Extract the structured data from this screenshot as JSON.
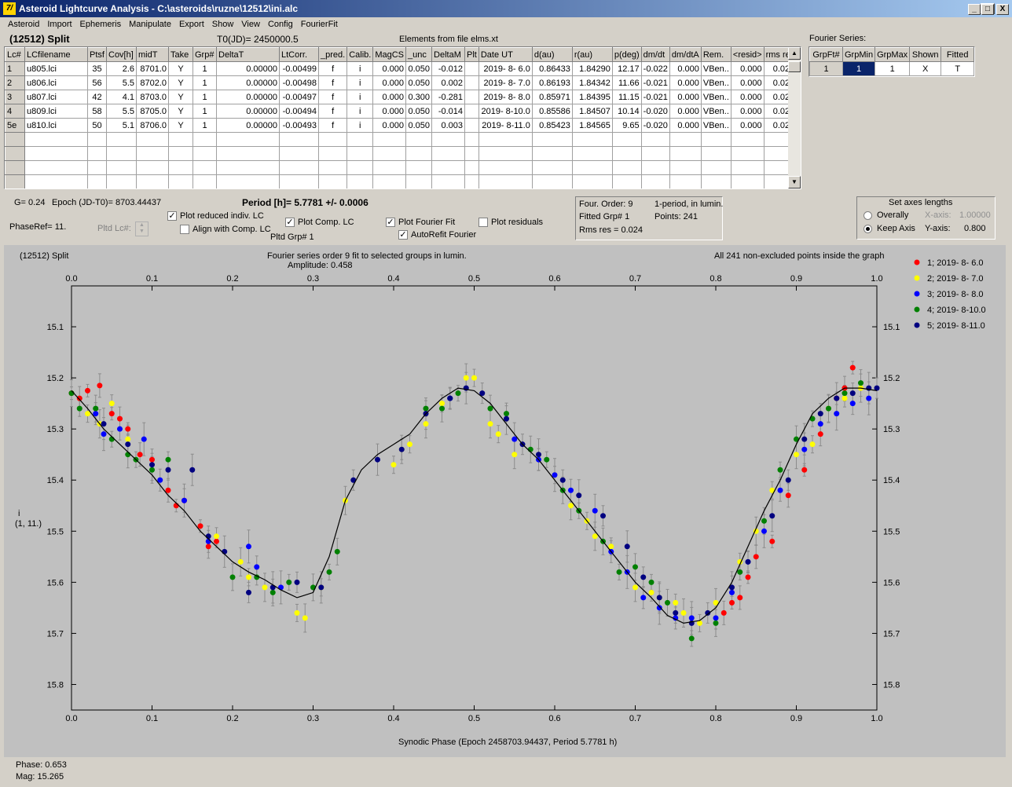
{
  "window": {
    "title": "Asteroid Lightcurve Analysis - C:\\asteroids\\ruzne\\12512\\ini.alc",
    "app_icon_text": "7/",
    "btn_minimize": "_",
    "btn_maximize": "□",
    "btn_close": "X"
  },
  "menu": [
    "Asteroid",
    "Import",
    "Ephemeris",
    "Manipulate",
    "Export",
    "Show",
    "View",
    "Config",
    "FourierFit"
  ],
  "header": {
    "object": "(12512) Split",
    "t0": "T0(JD)= 2450000.5",
    "elements": "Elements from file elms.xt"
  },
  "lc_table": {
    "columns": [
      "Lc#",
      "LCfilename",
      "Ptsf",
      "Cov[h]",
      "midT",
      "Take",
      "Grp#",
      "DeltaT",
      "LtCorr.",
      "_pred.",
      "Calib.",
      "MagCS",
      "_unc",
      "DeltaM",
      "Plt",
      "Date UT",
      "d(au)",
      "r(au)",
      "p(deg)",
      "dm/dt",
      "dm/dtA",
      "Rem.",
      "<resid>",
      "rms res"
    ],
    "rows": [
      [
        "1",
        "u805.lci",
        "35",
        "2.6",
        "8701.0",
        "Y",
        "1",
        "0.00000",
        "-0.00499",
        "f",
        "i",
        "0.000",
        "0.050",
        "-0.012",
        "",
        "2019- 8- 6.0",
        "0.86433",
        "1.84290",
        "12.17",
        "-0.022",
        "0.000",
        "VBen..",
        "0.000",
        "0.026"
      ],
      [
        "2",
        "u806.lci",
        "56",
        "5.5",
        "8702.0",
        "Y",
        "1",
        "0.00000",
        "-0.00498",
        "f",
        "i",
        "0.000",
        "0.050",
        "0.002",
        "",
        "2019- 8- 7.0",
        "0.86193",
        "1.84342",
        "11.66",
        "-0.021",
        "0.000",
        "VBen..",
        "0.000",
        "0.023"
      ],
      [
        "3",
        "u807.lci",
        "42",
        "4.1",
        "8703.0",
        "Y",
        "1",
        "0.00000",
        "-0.00497",
        "f",
        "i",
        "0.000",
        "0.300",
        "-0.281",
        "",
        "2019- 8- 8.0",
        "0.85971",
        "1.84395",
        "11.15",
        "-0.021",
        "0.000",
        "VBen..",
        "0.000",
        "0.021"
      ],
      [
        "4",
        "u809.lci",
        "58",
        "5.5",
        "8705.0",
        "Y",
        "1",
        "0.00000",
        "-0.00494",
        "f",
        "i",
        "0.000",
        "0.050",
        "-0.014",
        "",
        "2019- 8-10.0",
        "0.85586",
        "1.84507",
        "10.14",
        "-0.020",
        "0.000",
        "VBen..",
        "0.000",
        "0.022"
      ],
      [
        "5e",
        "u810.lci",
        "50",
        "5.1",
        "8706.0",
        "Y",
        "1",
        "0.00000",
        "-0.00493",
        "f",
        "i",
        "0.000",
        "0.050",
        "0.003",
        "",
        "2019- 8-11.0",
        "0.85423",
        "1.84565",
        "9.65",
        "-0.020",
        "0.000",
        "VBen..",
        "0.000",
        "0.023"
      ]
    ],
    "empty_rows": 4
  },
  "fourier_series": {
    "title": "Fourier Series:",
    "columns": [
      "GrpFt#",
      "GrpMin",
      "GrpMax",
      "Shown",
      "Fitted"
    ],
    "rows": [
      [
        "1",
        "1",
        "1",
        "X",
        "T"
      ]
    ]
  },
  "info": {
    "g": "G= 0.24",
    "epoch": "Epoch (JD-T0)= 8703.44437",
    "period": "Period [h]= 5.7781 +/- 0.0006",
    "phaseref": "PhaseRef= 11.",
    "pltd_lc": "Pltd Lc#:",
    "pltd_grp": "Pltd Grp#  1"
  },
  "checkboxes": {
    "reduced": {
      "label": "Plot reduced indiv. LC",
      "checked": true
    },
    "align": {
      "label": "Align with Comp. LC",
      "checked": false
    },
    "comp": {
      "label": "Plot Comp. LC",
      "checked": true
    },
    "fourier": {
      "label": "Plot Fourier Fit",
      "checked": true
    },
    "autorefit": {
      "label": "AutoRefit Fourier",
      "checked": true
    },
    "residuals": {
      "label": "Plot residuals",
      "checked": false
    }
  },
  "fit_panel": {
    "order": "Four. Order:  9",
    "period_note": "1-period, in lumin.",
    "fitted": "Fitted Grp# 1",
    "points": "Points: 241",
    "rms": "Rms res      = 0.024"
  },
  "axes_panel": {
    "title": "Set axes lengths",
    "overally": "Overally",
    "keep": "Keep Axis",
    "xaxis_label": "X-axis:",
    "xaxis_val": "1.00000",
    "yaxis_label": "Y-axis:",
    "yaxis_val": "0.800"
  },
  "plot": {
    "title_left": "(12512) Split",
    "title_center": "Fourier series order 9 fit to selected groups in lumin.",
    "amplitude": "Amplitude: 0.458",
    "title_right": "All 241 non-excluded points inside the graph",
    "ylabel1": "i",
    "ylabel2": "(1, 11.)",
    "xlabel": "Synodic Phase (Epoch 2458703.94437, Period 5.7781 h)"
  },
  "status": {
    "phase": "Phase:  0.653",
    "mag": "Mag:    15.265"
  },
  "chart_data": {
    "type": "scatter",
    "title": "Fourier series order 9 fit to selected groups in lumin.",
    "xlabel": "Synodic Phase (Epoch 2458703.94437, Period 5.7781 h)",
    "ylabel": "i",
    "xlim": [
      0,
      1
    ],
    "ylim": [
      15.85,
      15.02
    ],
    "y_inverted": true,
    "xticks": [
      "0.0",
      "0.1",
      "0.2",
      "0.3",
      "0.4",
      "0.5",
      "0.6",
      "0.7",
      "0.8",
      "0.9",
      "1.0"
    ],
    "yticks": [
      "15.1",
      "15.2",
      "15.3",
      "15.4",
      "15.5",
      "15.6",
      "15.7",
      "15.8"
    ],
    "grid": false,
    "legend_position": "top-right",
    "fit_curve": {
      "x": [
        0.0,
        0.02,
        0.04,
        0.06,
        0.08,
        0.1,
        0.12,
        0.14,
        0.16,
        0.18,
        0.2,
        0.22,
        0.24,
        0.26,
        0.28,
        0.3,
        0.32,
        0.34,
        0.36,
        0.38,
        0.4,
        0.42,
        0.44,
        0.46,
        0.48,
        0.5,
        0.52,
        0.54,
        0.56,
        0.58,
        0.6,
        0.62,
        0.64,
        0.66,
        0.68,
        0.7,
        0.72,
        0.74,
        0.76,
        0.78,
        0.8,
        0.82,
        0.84,
        0.86,
        0.88,
        0.9,
        0.92,
        0.94,
        0.96,
        0.98,
        1.0
      ],
      "y": [
        15.225,
        15.26,
        15.3,
        15.33,
        15.36,
        15.39,
        15.43,
        15.46,
        15.5,
        15.53,
        15.56,
        15.58,
        15.595,
        15.615,
        15.63,
        15.62,
        15.55,
        15.44,
        15.38,
        15.35,
        15.33,
        15.31,
        15.27,
        15.24,
        15.22,
        15.225,
        15.25,
        15.29,
        15.33,
        15.36,
        15.4,
        15.44,
        15.48,
        15.52,
        15.56,
        15.6,
        15.63,
        15.665,
        15.68,
        15.675,
        15.65,
        15.6,
        15.53,
        15.46,
        15.4,
        15.33,
        15.27,
        15.24,
        15.22,
        15.22,
        15.225
      ]
    },
    "series": [
      {
        "name": "1; 2019- 8- 6.0",
        "color": "#ff0000",
        "x": [
          0.0,
          0.01,
          0.02,
          0.035,
          0.05,
          0.06,
          0.07,
          0.085,
          0.1,
          0.12,
          0.13,
          0.14,
          0.16,
          0.17,
          0.18,
          0.81,
          0.82,
          0.83,
          0.84,
          0.85,
          0.87,
          0.89,
          0.91,
          0.93,
          0.95,
          0.96,
          0.97
        ],
        "y": [
          15.23,
          15.24,
          15.225,
          15.215,
          15.27,
          15.28,
          15.3,
          15.35,
          15.36,
          15.42,
          15.45,
          15.44,
          15.49,
          15.53,
          15.52,
          15.66,
          15.64,
          15.63,
          15.59,
          15.55,
          15.52,
          15.43,
          15.38,
          15.31,
          15.24,
          15.22,
          15.18
        ]
      },
      {
        "name": "2; 2019- 8- 7.0",
        "color": "#ffff00",
        "x": [
          0.02,
          0.035,
          0.05,
          0.07,
          0.18,
          0.21,
          0.22,
          0.24,
          0.28,
          0.29,
          0.31,
          0.34,
          0.4,
          0.41,
          0.42,
          0.44,
          0.46,
          0.49,
          0.5,
          0.52,
          0.53,
          0.55,
          0.6,
          0.62,
          0.64,
          0.65,
          0.67,
          0.7,
          0.72,
          0.73,
          0.75,
          0.76,
          0.78,
          0.8,
          0.83,
          0.85,
          0.87,
          0.9,
          0.92,
          0.94,
          0.96,
          0.98
        ],
        "y": [
          15.27,
          15.29,
          15.25,
          15.32,
          15.51,
          15.56,
          15.59,
          15.61,
          15.66,
          15.67,
          15.61,
          15.44,
          15.37,
          15.34,
          15.33,
          15.29,
          15.25,
          15.2,
          15.2,
          15.29,
          15.31,
          15.35,
          15.39,
          15.45,
          15.48,
          15.51,
          15.53,
          15.61,
          15.62,
          15.63,
          15.64,
          15.66,
          15.68,
          15.64,
          15.56,
          15.5,
          15.42,
          15.35,
          15.33,
          15.26,
          15.24,
          15.22
        ]
      },
      {
        "name": "3; 2019- 8- 8.0",
        "color": "#0000ff",
        "x": [
          0.03,
          0.04,
          0.06,
          0.09,
          0.11,
          0.14,
          0.17,
          0.22,
          0.23,
          0.26,
          0.47,
          0.55,
          0.58,
          0.6,
          0.62,
          0.65,
          0.67,
          0.69,
          0.71,
          0.73,
          0.75,
          0.77,
          0.8,
          0.82,
          0.84,
          0.86,
          0.88,
          0.91,
          0.93,
          0.95,
          0.97,
          0.99
        ],
        "y": [
          15.27,
          15.31,
          15.3,
          15.32,
          15.4,
          15.44,
          15.52,
          15.53,
          15.57,
          15.61,
          15.24,
          15.32,
          15.36,
          15.39,
          15.42,
          15.46,
          15.54,
          15.58,
          15.63,
          15.65,
          15.67,
          15.67,
          15.67,
          15.62,
          15.56,
          15.5,
          15.42,
          15.34,
          15.29,
          15.27,
          15.25,
          15.24
        ]
      },
      {
        "name": "4; 2019- 8-10.0",
        "color": "#008000",
        "x": [
          0.0,
          0.01,
          0.03,
          0.05,
          0.07,
          0.08,
          0.1,
          0.12,
          0.2,
          0.23,
          0.25,
          0.27,
          0.3,
          0.32,
          0.33,
          0.44,
          0.46,
          0.48,
          0.52,
          0.54,
          0.57,
          0.59,
          0.61,
          0.63,
          0.66,
          0.68,
          0.7,
          0.72,
          0.74,
          0.77,
          0.8,
          0.83,
          0.86,
          0.88,
          0.9,
          0.92,
          0.94,
          0.96,
          0.98
        ],
        "y": [
          15.23,
          15.26,
          15.26,
          15.32,
          15.35,
          15.36,
          15.38,
          15.36,
          15.59,
          15.59,
          15.62,
          15.6,
          15.61,
          15.58,
          15.54,
          15.26,
          15.26,
          15.23,
          15.26,
          15.27,
          15.34,
          15.36,
          15.42,
          15.46,
          15.52,
          15.58,
          15.57,
          15.6,
          15.64,
          15.71,
          15.68,
          15.58,
          15.48,
          15.38,
          15.32,
          15.28,
          15.26,
          15.23,
          15.21
        ]
      },
      {
        "name": "5; 2019- 8-11.0",
        "color": "#000080",
        "x": [
          0.04,
          0.07,
          0.1,
          0.12,
          0.15,
          0.17,
          0.19,
          0.22,
          0.25,
          0.28,
          0.31,
          0.35,
          0.38,
          0.41,
          0.44,
          0.47,
          0.49,
          0.51,
          0.54,
          0.56,
          0.58,
          0.61,
          0.63,
          0.66,
          0.69,
          0.71,
          0.73,
          0.75,
          0.77,
          0.79,
          0.82,
          0.84,
          0.87,
          0.89,
          0.91,
          0.93,
          0.95,
          0.97,
          0.99,
          1.0
        ],
        "y": [
          15.29,
          15.33,
          15.37,
          15.38,
          15.38,
          15.51,
          15.54,
          15.62,
          15.61,
          15.6,
          15.61,
          15.4,
          15.36,
          15.34,
          15.27,
          15.24,
          15.22,
          15.23,
          15.28,
          15.33,
          15.35,
          15.4,
          15.43,
          15.47,
          15.53,
          15.59,
          15.63,
          15.66,
          15.68,
          15.66,
          15.61,
          15.56,
          15.47,
          15.4,
          15.32,
          15.27,
          15.24,
          15.23,
          15.22,
          15.22
        ]
      }
    ]
  }
}
